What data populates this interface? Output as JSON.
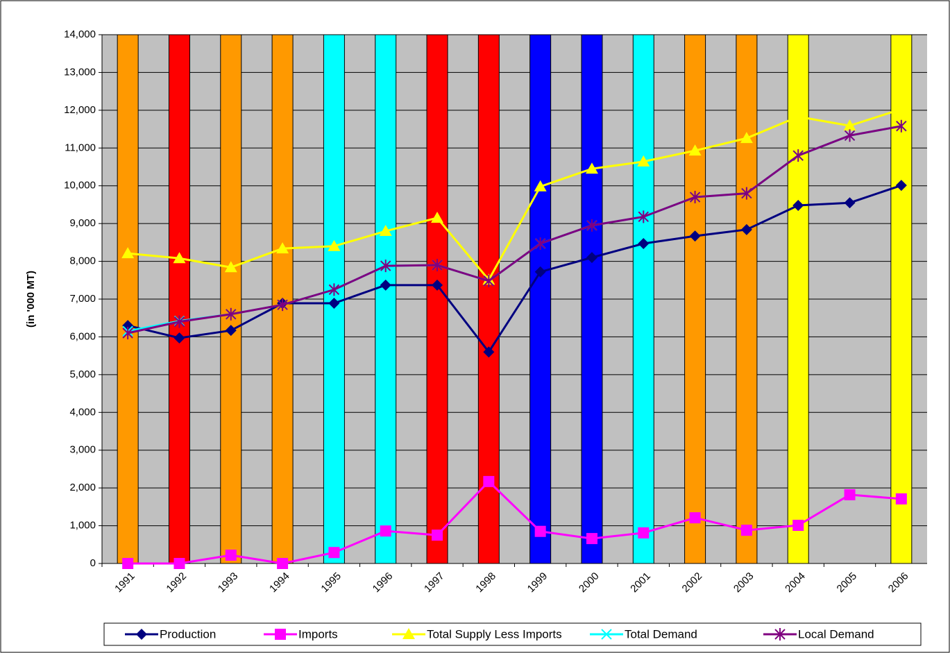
{
  "chart_data": {
    "type": "bar-line",
    "y_label": "(in '000 MT)",
    "categories": [
      "1991",
      "1992",
      "1993",
      "1994",
      "1995",
      "1996",
      "1997",
      "1998",
      "1999",
      "2000",
      "2001",
      "2002",
      "2003",
      "2004",
      "2005",
      "2006"
    ],
    "bars": {
      "values": [
        14000,
        14000,
        14000,
        14000,
        14000,
        14000,
        14000,
        14000,
        14000,
        14000,
        14000,
        14000,
        14000,
        14000,
        null,
        14000
      ],
      "colors": [
        "#ff9900",
        "#ff0000",
        "#ff9900",
        "#ff9900",
        "#00ffff",
        "#00ffff",
        "#ff0000",
        "#ff0000",
        "#0000ff",
        "#0000ff",
        "#00ffff",
        "#ff9900",
        "#ff9900",
        "#ffff00",
        null,
        "#ffff00"
      ]
    },
    "series": [
      {
        "name": "Production",
        "color": "#000080",
        "marker": "diamond",
        "values": [
          6300,
          5970,
          6170,
          6890,
          6890,
          7370,
          7370,
          5600,
          7720,
          8100,
          8470,
          8670,
          8840,
          9480,
          9550,
          10010
        ]
      },
      {
        "name": "Imports",
        "color": "#ff00ff",
        "marker": "square",
        "values": [
          0,
          0,
          220,
          0,
          290,
          860,
          750,
          2170,
          850,
          660,
          810,
          1210,
          880,
          1010,
          1820,
          1710
        ]
      },
      {
        "name": "Total Supply Less Imports",
        "color": "#ffff00",
        "marker": "triangle",
        "values": [
          8210,
          8080,
          7840,
          8340,
          8400,
          8800,
          9150,
          7510,
          9980,
          10450,
          10640,
          10930,
          11260,
          11830,
          11590,
          12030
        ]
      },
      {
        "name": "Total Demand",
        "color": "#00ffff",
        "marker": "x",
        "values": [
          6150,
          6420,
          6600,
          6850,
          7250,
          7880,
          7900,
          7480,
          8470,
          8950,
          9180,
          9700,
          9800,
          10800,
          11330,
          11580
        ]
      },
      {
        "name": "Local Demand",
        "color": "#800080",
        "marker": "star",
        "values": [
          6100,
          6400,
          6600,
          6850,
          7250,
          7880,
          7900,
          7480,
          8470,
          8950,
          9180,
          9700,
          9800,
          10800,
          11330,
          11580
        ]
      }
    ],
    "ylim": [
      0,
      14000
    ],
    "yticks": [
      0,
      {
        "value": 1000,
        "label": "1,000"
      },
      {
        "value": 2000,
        "label": "2,000"
      },
      {
        "value": 3000,
        "label": "3,000"
      },
      {
        "value": 4000,
        "label": "4,000"
      },
      {
        "value": 5000,
        "label": "5,000"
      },
      {
        "value": 6000,
        "label": "6,000"
      },
      {
        "value": 7000,
        "label": "7,000"
      },
      {
        "value": 8000,
        "label": "8,000"
      },
      {
        "value": 9000,
        "label": "9,000"
      },
      {
        "value": 10000,
        "label": "10,000"
      },
      {
        "value": 11000,
        "label": "11,000"
      },
      {
        "value": 12000,
        "label": "12,000"
      },
      {
        "value": 13000,
        "label": "13,000"
      },
      {
        "value": 14000,
        "label": "14,000"
      }
    ],
    "grid": true,
    "plot_background": "#c0c0c0",
    "legend": "bottom"
  }
}
